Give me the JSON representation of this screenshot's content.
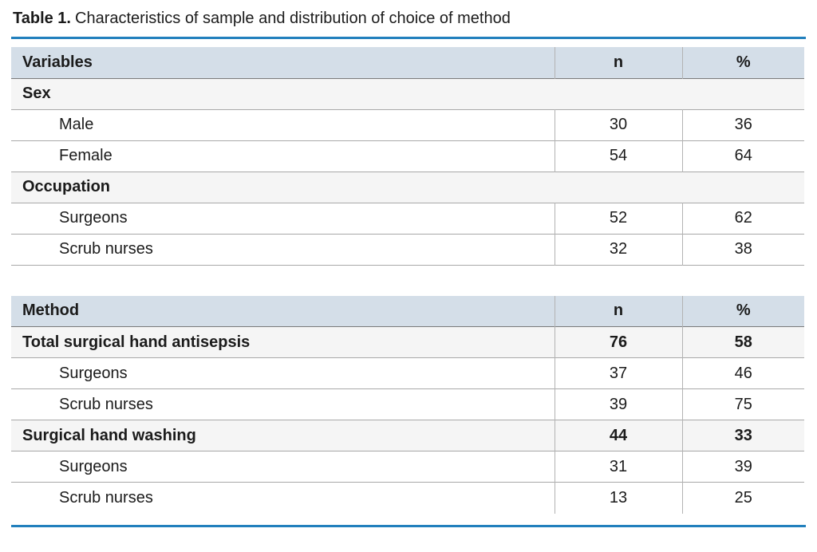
{
  "title": {
    "prefix": "Table 1.",
    "text": "Characteristics of sample and distribution of choice of method"
  },
  "colors": {
    "header_bg": "#d4dee8",
    "section_bg": "#f5f5f5",
    "rule_blue": "#2280bd",
    "border_gray": "#a8a8a8",
    "border_dark": "#7a7a7a",
    "divider_gray": "#b3b3b3",
    "text_color": "#1b1b1b"
  },
  "tables": [
    {
      "headers": {
        "label": "Variables",
        "n": "n",
        "pct": "%"
      },
      "rows": [
        {
          "label": "Sex",
          "type": "section",
          "n": "",
          "pct": ""
        },
        {
          "label": "Male",
          "type": "sub",
          "n": "30",
          "pct": "36"
        },
        {
          "label": "Female",
          "type": "sub",
          "n": "54",
          "pct": "64"
        },
        {
          "label": "Occupation",
          "type": "section",
          "n": "",
          "pct": ""
        },
        {
          "label": "Surgeons",
          "type": "sub",
          "n": "52",
          "pct": "62"
        },
        {
          "label": "Scrub nurses",
          "type": "sub",
          "n": "32",
          "pct": "38"
        }
      ]
    },
    {
      "headers": {
        "label": "Method",
        "n": "n",
        "pct": "%"
      },
      "rows": [
        {
          "label": "Total surgical hand antisepsis",
          "type": "bold",
          "n": "76",
          "pct": "58"
        },
        {
          "label": "Surgeons",
          "type": "sub",
          "n": "37",
          "pct": "46"
        },
        {
          "label": "Scrub nurses",
          "type": "sub",
          "n": "39",
          "pct": "75"
        },
        {
          "label": "Surgical hand washing",
          "type": "bold",
          "n": "44",
          "pct": "33"
        },
        {
          "label": "Surgeons",
          "type": "sub",
          "n": "31",
          "pct": "39"
        },
        {
          "label": "Scrub nurses",
          "type": "sub",
          "n": "13",
          "pct": "25"
        }
      ]
    }
  ]
}
